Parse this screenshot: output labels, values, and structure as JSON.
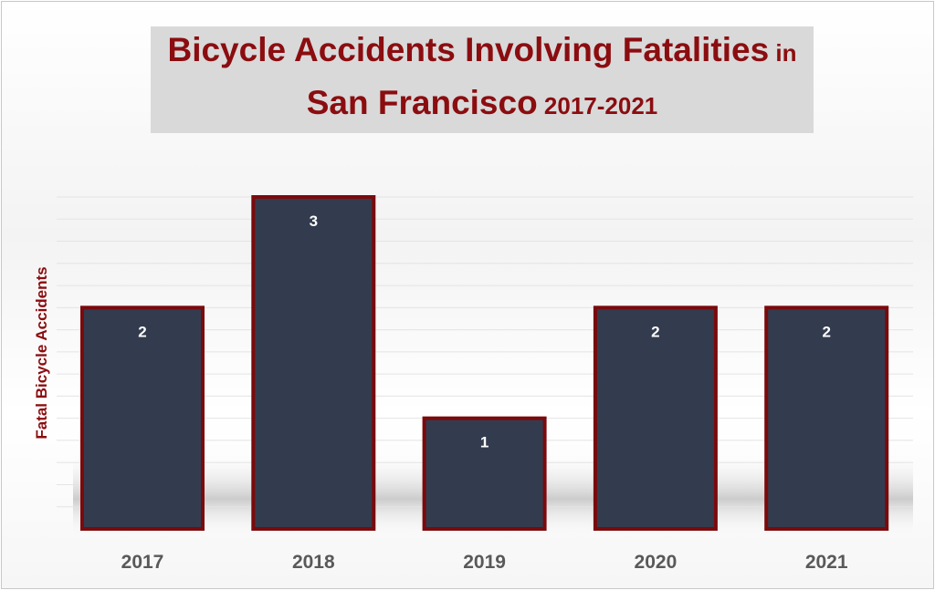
{
  "chart_data": {
    "type": "bar",
    "title_line1_main": "Bicycle Accidents Involving Fatalities",
    "title_line1_tail": " in",
    "title_line2_main": "San Francisco",
    "title_line2_tail": " 2017-2021",
    "xlabel": "",
    "ylabel": "Fatal Bicycle Accidents",
    "categories": [
      "2017",
      "2018",
      "2019",
      "2020",
      "2021"
    ],
    "values": [
      2,
      3,
      1,
      2,
      2
    ],
    "data_labels": [
      "2",
      "3",
      "1",
      "2",
      "2"
    ],
    "ylim": [
      0,
      3
    ],
    "grid": true,
    "legend": "none",
    "colors": {
      "bar_fill": "#333c4e",
      "bar_border": "#7a0a0c",
      "title_text": "#8b0d10",
      "title_background": "#d9d9d9",
      "tick_text": "#595959",
      "data_label_text": "#ffffff"
    }
  }
}
